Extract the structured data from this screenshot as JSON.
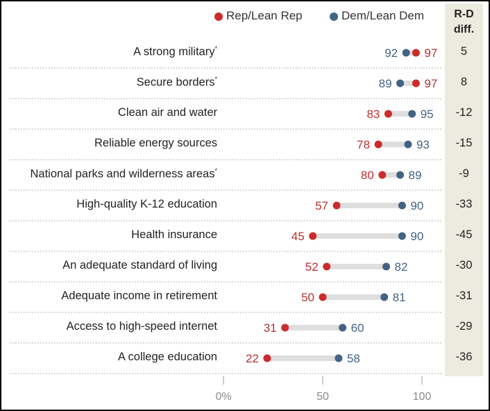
{
  "colors": {
    "rep": "#cc2b2b",
    "dem": "#436384",
    "connector": "#dedede",
    "rep_text": "#b8312f",
    "dem_text": "#436384"
  },
  "legend": {
    "rep_label": "Rep/Lean Rep",
    "dem_label": "Dem/Lean Dem"
  },
  "diff_header": {
    "line1": "R-D",
    "line2": "diff."
  },
  "chart_data": {
    "type": "dot",
    "title": "",
    "xlabel": "",
    "xlim": [
      0,
      100
    ],
    "x_ticks": [
      "0%",
      "50",
      "100"
    ],
    "categories": [
      "A strong military",
      "Secure borders",
      "Clean air and water",
      "Reliable energy sources",
      "National parks and wilderness areas",
      "High-quality K-12 education",
      "Health insurance",
      "An adequate standard of living",
      "Adequate income in retirement",
      "Access to high-speed internet",
      "A college education"
    ],
    "asterisk": [
      true,
      true,
      false,
      false,
      true,
      false,
      false,
      false,
      false,
      false,
      false
    ],
    "series": [
      {
        "name": "Rep/Lean Rep",
        "values": [
          97,
          97,
          83,
          78,
          80,
          57,
          45,
          52,
          50,
          31,
          22
        ]
      },
      {
        "name": "Dem/Lean Dem",
        "values": [
          92,
          89,
          95,
          93,
          89,
          90,
          90,
          82,
          81,
          60,
          58
        ]
      }
    ],
    "diff": [
      "5",
      "8",
      "-12",
      "-15",
      "-9",
      "-33",
      "-45",
      "-30",
      "-31",
      "-29",
      "-36"
    ]
  }
}
